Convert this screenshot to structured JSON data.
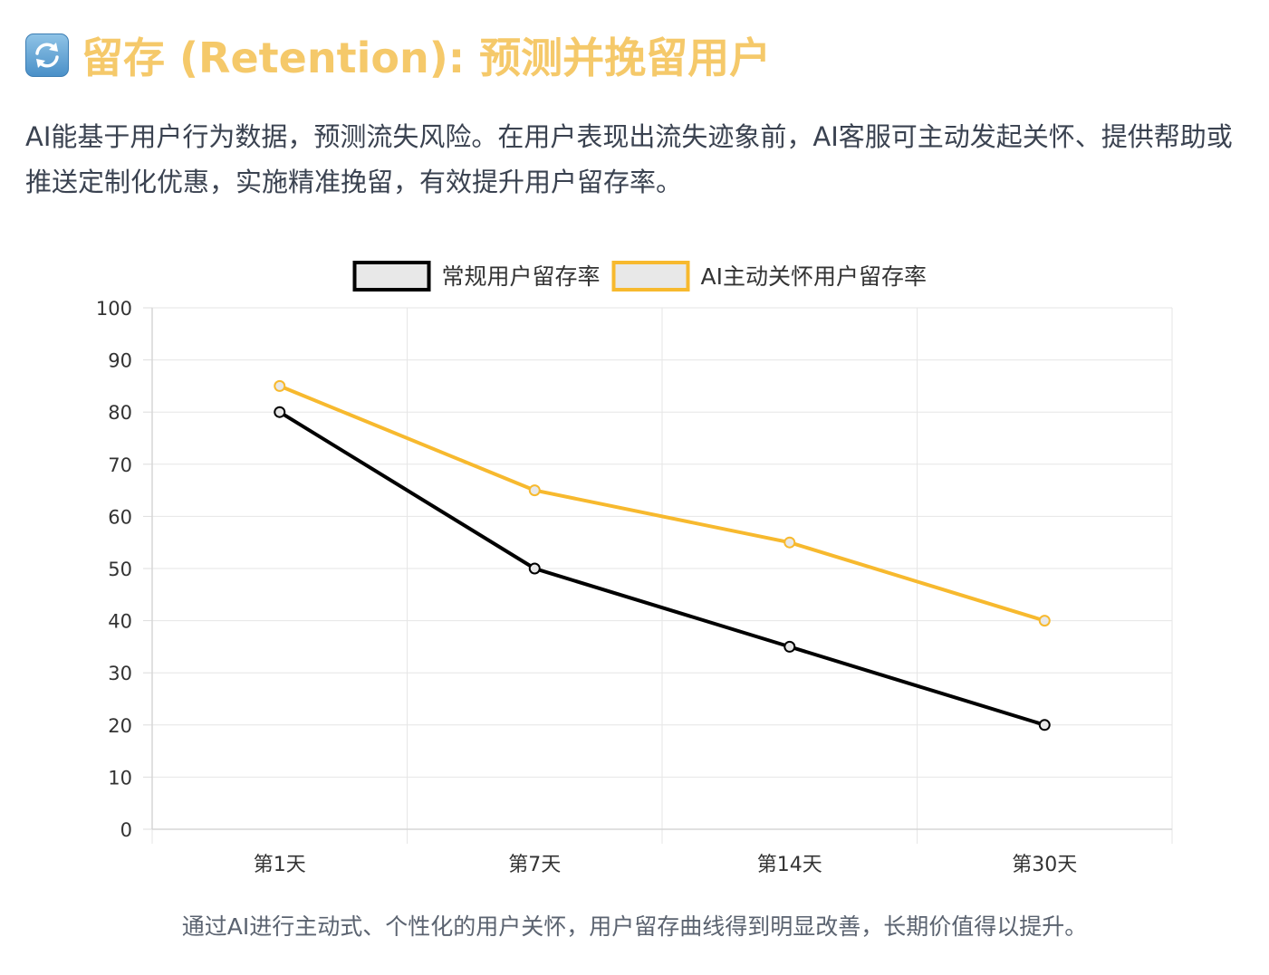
{
  "header": {
    "icon": "refresh-arrows-icon",
    "title": "留存 (Retention): 预测并挽留用户",
    "title_color": "#f5c96a"
  },
  "description": "AI能基于用户行为数据，预测流失风险。在用户表现出流失迹象前，AI客服可主动发起关怀、提供帮助或推送定制化优惠，实施精准挽留，有效提升用户留存率。",
  "caption": "通过AI进行主动式、个性化的用户关怀，用户留存曲线得到明显改善，长期价值得以提升。",
  "chart_data": {
    "type": "line",
    "title": "",
    "xlabel": "",
    "ylabel": "",
    "categories": [
      "第1天",
      "第7天",
      "第14天",
      "第30天"
    ],
    "ylim": [
      0,
      100
    ],
    "yticks": [
      "0",
      "10",
      "20",
      "30",
      "40",
      "50",
      "60",
      "70",
      "80",
      "90",
      "100"
    ],
    "grid": true,
    "legend_position": "top",
    "series": [
      {
        "name": "常规用户留存率",
        "values": [
          80,
          50,
          35,
          20
        ],
        "color": "#000000"
      },
      {
        "name": "AI主动关怀用户留存率",
        "values": [
          85,
          65,
          55,
          40
        ],
        "color": "#f7b92e"
      }
    ]
  }
}
